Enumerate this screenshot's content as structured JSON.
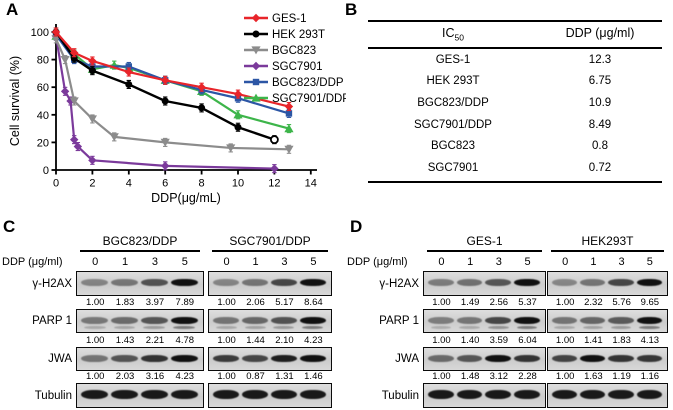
{
  "chart_data": {
    "type": "line",
    "title": "",
    "xlabel": "DDP(μg/mL)",
    "ylabel": "Cell survival (%)",
    "xlim": [
      0,
      14
    ],
    "ylim": [
      0,
      110
    ],
    "xticks": [
      0,
      2,
      4,
      6,
      8,
      10,
      12,
      14
    ],
    "yticks": [
      0,
      20,
      40,
      60,
      80,
      100
    ],
    "grid": false,
    "legend_position": "top-right",
    "series": [
      {
        "name": "GES-1",
        "color": "#e8252a",
        "marker": "diamond",
        "x": [
          0,
          1,
          2,
          4,
          6,
          8,
          10,
          12.8
        ],
        "y": [
          100,
          85,
          79,
          71,
          65,
          60,
          55,
          46
        ]
      },
      {
        "name": "HEK 293T",
        "color": "#000000",
        "marker": "circle",
        "last_open": true,
        "x": [
          0,
          1,
          2,
          4,
          6,
          8,
          10,
          12
        ],
        "y": [
          100,
          81,
          72,
          62,
          50,
          45,
          31,
          22
        ]
      },
      {
        "name": "BGC823",
        "color": "#8c8c8c",
        "marker": "triangle-down",
        "x": [
          0,
          0.5,
          1,
          2,
          3.2,
          6,
          9.6,
          12.8
        ],
        "y": [
          95,
          80,
          50,
          37,
          24,
          20,
          16,
          15
        ]
      },
      {
        "name": "SGC7901",
        "color": "#7b3a9b",
        "marker": "diamond",
        "x": [
          0,
          0.5,
          0.8,
          1,
          1.2,
          2,
          6,
          12
        ],
        "y": [
          97,
          57,
          50,
          22,
          17,
          7,
          3,
          1
        ]
      },
      {
        "name": "BGC823/DDP",
        "color": "#2c56a5",
        "marker": "square",
        "x": [
          0,
          1,
          2,
          4,
          6,
          8,
          10,
          12.8
        ],
        "y": [
          98,
          80,
          75,
          75,
          65,
          58,
          52,
          41
        ]
      },
      {
        "name": "SGC7901/DDP",
        "color": "#3db54a",
        "marker": "triangle-up",
        "x": [
          0,
          1,
          2,
          3.2,
          4,
          6,
          8,
          10,
          12.8
        ],
        "y": [
          97,
          84,
          73,
          76,
          74,
          65,
          57,
          40,
          30
        ]
      }
    ]
  },
  "panels": {
    "A": {
      "label": "A"
    },
    "B": {
      "label": "B",
      "table": {
        "header": {
          "col1_prefix": "IC",
          "col1_sub": "50",
          "col2": "DDP (μg/ml)"
        },
        "rows": [
          {
            "cell_line": "GES-1",
            "value": "12.3"
          },
          {
            "cell_line": "HEK 293T",
            "value": "6.75"
          },
          {
            "cell_line": "BGC823/DDP",
            "value": "10.9"
          },
          {
            "cell_line": "SGC7901/DDP",
            "value": "8.49"
          },
          {
            "cell_line": "BGC823",
            "value": "0.8"
          },
          {
            "cell_line": "SGC7901",
            "value": "0.72"
          }
        ]
      }
    },
    "C": {
      "label": "C",
      "dose_label": "DDP (μg/ml)",
      "doses": [
        "0",
        "1",
        "3",
        "5"
      ],
      "groups": [
        "BGC823/DDP",
        "SGC7901/DDP"
      ],
      "blot_rows": [
        {
          "label": "γ-H2AX",
          "values": [
            [
              "1.00",
              "1.83",
              "3.97",
              "7.89"
            ],
            [
              "1.00",
              "2.06",
              "5.17",
              "8.64"
            ]
          ]
        },
        {
          "label": "PARP 1",
          "values": [
            [
              "1.00",
              "1.43",
              "2.21",
              "4.78"
            ],
            [
              "1.00",
              "1.44",
              "2.10",
              "4.23"
            ]
          ]
        },
        {
          "label": "JWA",
          "values": [
            [
              "1.00",
              "2.03",
              "3.16",
              "4.23"
            ],
            [
              "1.00",
              "0.87",
              "1.31",
              "1.46"
            ]
          ]
        },
        {
          "label": "Tubulin",
          "values": null
        }
      ]
    },
    "D": {
      "label": "D",
      "dose_label": "DDP (μg/ml)",
      "doses": [
        "0",
        "1",
        "3",
        "5"
      ],
      "groups": [
        "GES-1",
        "HEK293T"
      ],
      "blot_rows": [
        {
          "label": "γ-H2AX",
          "values": [
            [
              "1.00",
              "1.49",
              "2.56",
              "5.37"
            ],
            [
              "1.00",
              "2.32",
              "5.76",
              "9.65"
            ]
          ]
        },
        {
          "label": "PARP 1",
          "values": [
            [
              "1.00",
              "1.40",
              "3.59",
              "6.04"
            ],
            [
              "1.00",
              "1.41",
              "1.83",
              "4.13"
            ]
          ]
        },
        {
          "label": "JWA",
          "values": [
            [
              "1.00",
              "1.48",
              "3.12",
              "2.28"
            ],
            [
              "1.00",
              "1.63",
              "1.19",
              "1.16"
            ]
          ]
        },
        {
          "label": "Tubulin",
          "values": null
        }
      ]
    }
  }
}
